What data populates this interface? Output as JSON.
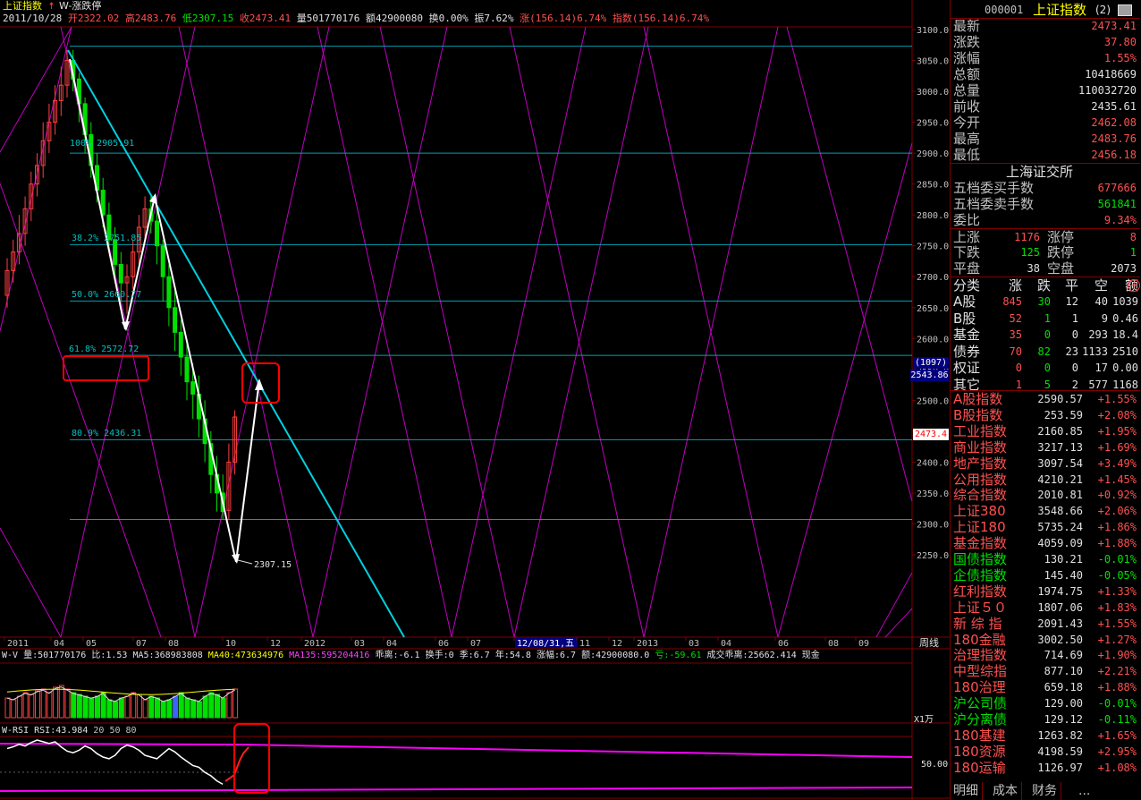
{
  "header": {
    "index_name": "上证指数",
    "formula_name": "W-涨跌停",
    "date": "2011/10/28",
    "open": "开2322.02",
    "high": "高2483.76",
    "low": "低2307.15",
    "close": "收2473.41",
    "volume": "量501770176",
    "amount": "额42900080",
    "turnover": "换0.00%",
    "amplitude": "振7.62%",
    "change": "涨(156.14)6.74%",
    "index_change": "指数(156.14)6.74%"
  },
  "price_axis": [
    "3100.0",
    "3050.0",
    "3000.0",
    "2950.0",
    "2900.0",
    "2850.0",
    "2800.0",
    "2750.0",
    "2700.0",
    "2650.0",
    "2600.0",
    "2550.0",
    "2500.0",
    "2450.0",
    "2400.0",
    "2350.0",
    "2300.0",
    "2250.0"
  ],
  "price_markers": {
    "bracket": "(1097)",
    "level": "2543.86",
    "current": "2473.4"
  },
  "fib_labels": [
    "100% 2905.91",
    "38.2% 2751.85",
    "50.0% 2660.77",
    "61.8% 2572.72",
    "80.9% 2436.31"
  ],
  "low_label": "2307.15",
  "time_axis": [
    "2011",
    "04",
    "05",
    "07",
    "08",
    "10",
    "12",
    "2012",
    "03",
    "04",
    "06",
    "07",
    "12/08/31,五",
    "11",
    "12",
    "2013",
    "03",
    "04",
    "06",
    "08",
    "09"
  ],
  "period": "周线",
  "volume_line": {
    "name": "W-V",
    "items": [
      "量:501770176",
      "比:1.53",
      "MA5:368983808",
      "MA40:473634976",
      "MA135:595204416",
      "乖离:-6.1",
      "换手:0",
      "季:6.7",
      "年:54.8",
      "涨幅:6.7",
      "额:42900080.0",
      "亏:-59.61",
      "成交乖离:25662.414",
      "现金"
    ]
  },
  "volume_unit": "X1万",
  "rsi_line": {
    "name": "W-RSI",
    "value": "RSI:43.984",
    "levels": "20 50 80"
  },
  "rsi_axis": "50.00",
  "quote": {
    "code": "000001",
    "name": "上证指数",
    "suffix": "(2)",
    "rows": [
      {
        "label": "最新",
        "value": "2473.41",
        "color": "#ff5050"
      },
      {
        "label": "涨跌",
        "value": "37.80",
        "color": "#ff5050"
      },
      {
        "label": "涨幅",
        "value": "1.55%",
        "color": "#ff5050"
      },
      {
        "label": "总额",
        "value": "10418669",
        "color": "#e0e0e0"
      },
      {
        "label": "总量",
        "value": "110032720",
        "color": "#e0e0e0"
      },
      {
        "label": "前收",
        "value": "2435.61",
        "color": "#e0e0e0"
      },
      {
        "label": "今开",
        "value": "2462.08",
        "color": "#ff5050"
      },
      {
        "label": "最高",
        "value": "2483.76",
        "color": "#ff5050"
      },
      {
        "label": "最低",
        "value": "2456.18",
        "color": "#ff5050"
      }
    ]
  },
  "exchange": {
    "title": "上海证交所",
    "buy_label": "五档委买手数",
    "buy_value": "677666",
    "sell_label": "五档委卖手数",
    "sell_value": "561841",
    "ratio_label": "委比",
    "ratio_value": "9.34%",
    "up_label": "上涨",
    "up_value": "1176",
    "limit_up_label": "涨停",
    "limit_up_value": "8",
    "down_label": "下跌",
    "down_value": "125",
    "limit_down_label": "跌停",
    "limit_down_value": "1",
    "flat_label": "平盘",
    "flat_value": "38",
    "empty_label": "空盘",
    "empty_value": "2073"
  },
  "category_table": {
    "headers": [
      "分类",
      "涨",
      "跌",
      "平",
      "空",
      "额"
    ],
    "rows": [
      [
        "A股",
        "845",
        "30",
        "12",
        "40",
        "1039"
      ],
      [
        "B股",
        "52",
        "1",
        "1",
        "9",
        "0.46"
      ],
      [
        "基金",
        "35",
        "0",
        "0",
        "293",
        "18.4"
      ],
      [
        "债券",
        "70",
        "82",
        "23",
        "1133",
        "2510"
      ],
      [
        "权证",
        "0",
        "0",
        "0",
        "17",
        "0.00"
      ],
      [
        "其它",
        "1",
        "5",
        "2",
        "577",
        "1168"
      ]
    ]
  },
  "indices": [
    {
      "name": "A股指数",
      "value": "2590.57",
      "pct": "+1.55%"
    },
    {
      "name": "B股指数",
      "value": "253.59",
      "pct": "+2.08%"
    },
    {
      "name": "工业指数",
      "value": "2160.85",
      "pct": "+1.95%"
    },
    {
      "name": "商业指数",
      "value": "3217.13",
      "pct": "+1.69%"
    },
    {
      "name": "地产指数",
      "value": "3097.54",
      "pct": "+3.49%"
    },
    {
      "name": "公用指数",
      "value": "4210.21",
      "pct": "+1.45%"
    },
    {
      "name": "综合指数",
      "value": "2010.81",
      "pct": "+0.92%"
    },
    {
      "name": "上证380",
      "value": "3548.66",
      "pct": "+2.06%"
    },
    {
      "name": "上证180",
      "value": "5735.24",
      "pct": "+1.86%"
    },
    {
      "name": "基金指数",
      "value": "4059.09",
      "pct": "+1.88%"
    },
    {
      "name": "国债指数",
      "value": "130.21",
      "pct": "-0.01%"
    },
    {
      "name": "企债指数",
      "value": "145.40",
      "pct": "-0.05%"
    },
    {
      "name": "红利指数",
      "value": "1974.75",
      "pct": "+1.33%"
    },
    {
      "name": "上证５０",
      "value": "1807.06",
      "pct": "+1.83%"
    },
    {
      "name": "新 综 指",
      "value": "2091.43",
      "pct": "+1.55%"
    },
    {
      "name": "180金融",
      "value": "3002.50",
      "pct": "+1.27%"
    },
    {
      "name": "治理指数",
      "value": "714.69",
      "pct": "+1.90%"
    },
    {
      "name": "中型综指",
      "value": "877.10",
      "pct": "+2.21%"
    },
    {
      "name": "180治理",
      "value": "659.18",
      "pct": "+1.88%"
    },
    {
      "name": "沪公司债",
      "value": "129.00",
      "pct": "-0.01%"
    },
    {
      "name": "沪分离债",
      "value": "129.12",
      "pct": "-0.11%"
    },
    {
      "name": "180基建",
      "value": "1263.82",
      "pct": "+1.65%"
    },
    {
      "name": "180资源",
      "value": "4198.59",
      "pct": "+2.95%"
    },
    {
      "name": "180运输",
      "value": "1126.97",
      "pct": "+1.08%"
    }
  ],
  "bottom_tabs": [
    "明细",
    "成本",
    "财务",
    "..."
  ],
  "colors": {
    "up": "#ff5050",
    "down": "#00e000",
    "fib": "#00c0c0",
    "gann": "#ff00ff",
    "border": "#800000"
  }
}
